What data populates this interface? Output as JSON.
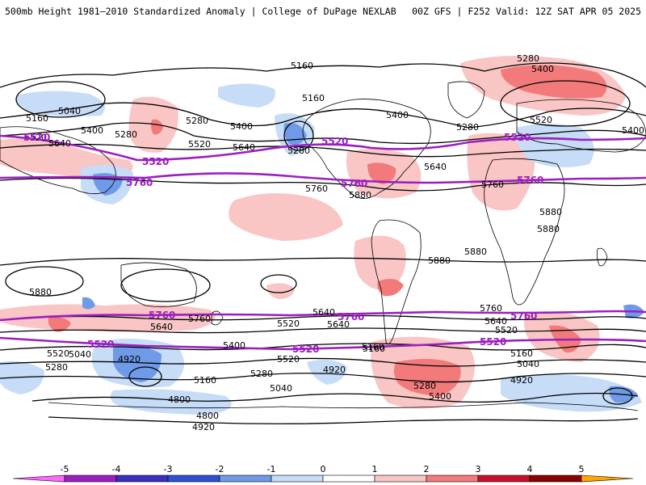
{
  "header": {
    "title_left": "500mb Height 1981–2010 Standardized Anomaly | College of DuPage NEXLAB",
    "title_right": "00Z GFS | F252 Valid: 12Z SAT APR 05 2025"
  },
  "map": {
    "contour_labels_black": [
      "5160",
      "5040",
      "5160",
      "5400",
      "5280",
      "5520",
      "5640",
      "5400",
      "5160",
      "5280",
      "5400",
      "5280",
      "5520",
      "5640",
      "5760",
      "5880",
      "5640",
      "5760",
      "5880",
      "5880",
      "5880",
      "5880",
      "5880",
      "5760",
      "5640",
      "5400",
      "5520",
      "5040",
      "5280",
      "4920",
      "5160",
      "5280",
      "5040",
      "4920",
      "4800",
      "4800",
      "4920",
      "5160",
      "5640",
      "5520",
      "5400",
      "5280",
      "5520",
      "5640",
      "5760",
      "5640",
      "5520",
      "5160",
      "5040",
      "4920",
      "5400",
      "5280",
      "5520",
      "5400",
      "5280",
      "5160"
    ],
    "contour_labels_purple": [
      "5520",
      "5520",
      "5520",
      "5520",
      "5760",
      "5760",
      "5760",
      "5760",
      "5760",
      "5760",
      "5520",
      "5520",
      "5520"
    ],
    "colors": {
      "contour_black": "#000000",
      "contour_purple": "#9b1fc0",
      "coast": "#000000",
      "pos_1": "#f9c5c5",
      "pos_2": "#f27a7a",
      "neg_1": "#c6dcf7",
      "neg_2": "#6f9ae8",
      "neg_3": "#2a56cf"
    }
  },
  "colorbar": {
    "ticks": [
      "-5",
      "-4",
      "-3",
      "-2",
      "-1",
      "0",
      "1",
      "2",
      "3",
      "4",
      "5"
    ],
    "colors": [
      "#ff66ff",
      "#9b1fc0",
      "#3a2fbf",
      "#2e4fcf",
      "#6f9ae8",
      "#c6dcf7",
      "#ffffff",
      "#f9c5c5",
      "#f27a7a",
      "#c8102e",
      "#8b0000",
      "#ffa500"
    ]
  }
}
